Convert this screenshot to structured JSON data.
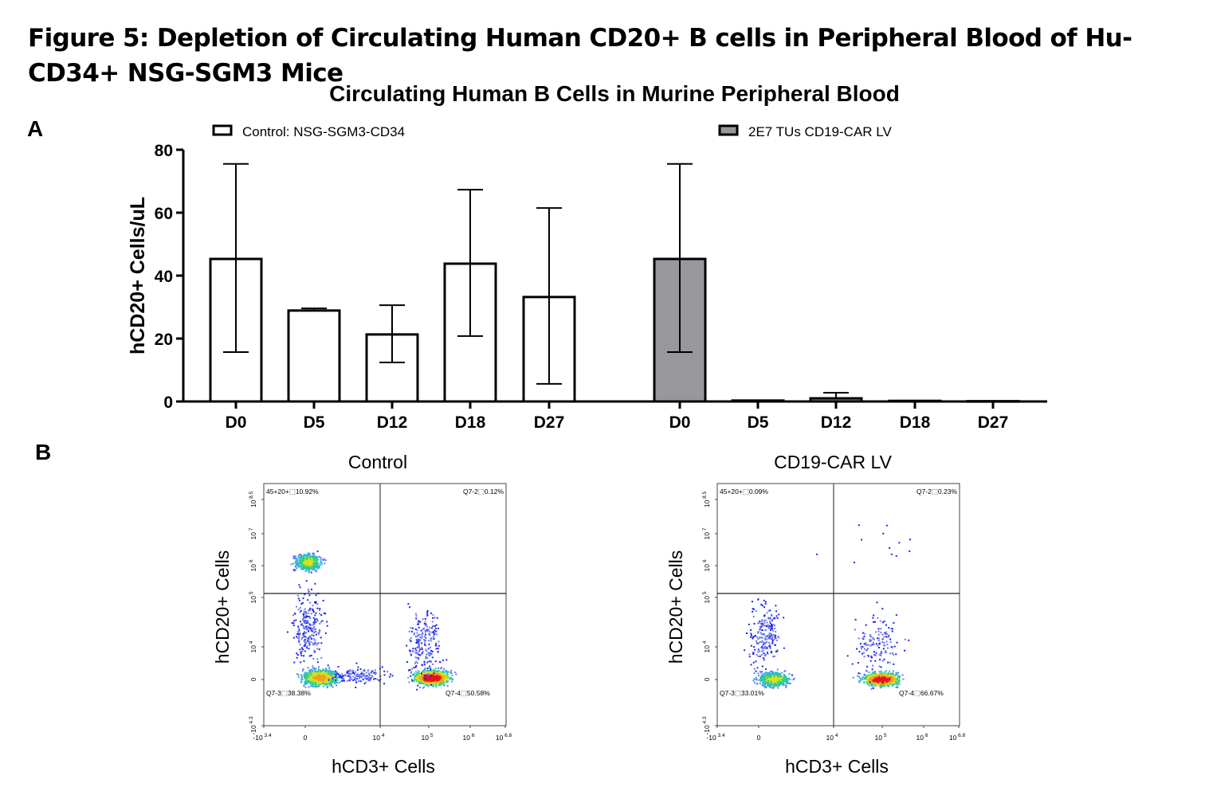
{
  "figure_title": "Figure 5:  Depletion of Circulating Human CD20+ B cells in Peripheral Blood of Hu-CD34+ NSG-SGM3 Mice",
  "panel_a_label": "A",
  "panel_b_label": "B",
  "chart_data": [
    {
      "type": "bar",
      "title": "Circulating Human B Cells in Murine Peripheral Blood",
      "ylabel": "hCD20+ Cells/uL",
      "xlabel": "",
      "ylim": [
        0,
        80
      ],
      "yticks": [
        "0",
        "20",
        "40",
        "60",
        "80"
      ],
      "grid": false,
      "legend": "top",
      "groups": [
        {
          "name": "Control: NSG-SGM3-CD34",
          "color": "#ffffff",
          "categories": [
            "D0",
            "D5",
            "D12",
            "D18",
            "D27"
          ],
          "values": [
            45.3,
            28.9,
            21.3,
            43.8,
            33.2
          ],
          "err_upper": [
            75.5,
            29.6,
            30.6,
            67.3,
            61.5
          ],
          "err_lower": [
            15.7,
            28.9,
            12.4,
            20.8,
            5.6
          ]
        },
        {
          "name": "2E7 TUs CD19-CAR LV",
          "color": "#98979c",
          "categories": [
            "D0",
            "D5",
            "D12",
            "D18",
            "D27"
          ],
          "values": [
            45.3,
            0.3,
            1.0,
            0.2,
            0.1
          ],
          "err_upper": [
            75.5,
            0.3,
            2.8,
            0.2,
            0.1
          ],
          "err_lower": [
            15.7,
            0.3,
            1.0,
            0.2,
            0.1
          ]
        }
      ]
    },
    {
      "type": "scatter",
      "title": "Control",
      "xlabel": "hCD3+ Cells",
      "ylabel": "hCD20+ Cells",
      "xticks": [
        "-10 3.4",
        "0",
        "10 4",
        "10 5",
        "10 6",
        "10 6.8"
      ],
      "yticks": [
        "-10 4.3",
        "0",
        "10 4",
        "10 5",
        "10 6",
        "10 7",
        "10 8.5"
      ],
      "quadrants": {
        "UL": "45+20+⬚10.92%",
        "UR": "Q7-2⬚0.12%",
        "LL": "Q7-3⬚38.38%",
        "LR": "Q7-4⬚50.58%"
      }
    },
    {
      "type": "scatter",
      "title": "CD19-CAR LV",
      "xlabel": "hCD3+ Cells",
      "ylabel": "hCD20+ Cells",
      "xticks": [
        "-10 3.4",
        "0",
        "10 4",
        "10 5",
        "10 6",
        "10 6.8"
      ],
      "yticks": [
        "-10 4.3",
        "0",
        "10 4",
        "10 5",
        "10 6",
        "10 7",
        "10 8.5"
      ],
      "quadrants": {
        "UL": "45+20+⬚0.09%",
        "UR": "Q7-2⬚0.23%",
        "LL": "Q7-3⬚33.01%",
        "LR": "Q7-4⬚66.67%"
      }
    }
  ]
}
